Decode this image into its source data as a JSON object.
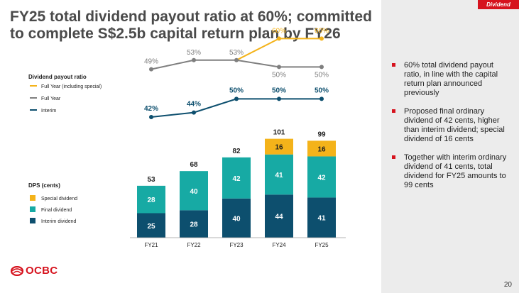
{
  "header": {
    "title_line1": "FY25 total dividend payout ratio at 60%; committed",
    "title_line2": "to complete S$2.5b capital return plan by FY26",
    "tag": "Dividend"
  },
  "bullets": [
    "60% total dividend payout ratio, in line with the capital return plan announced previously",
    "Proposed final ordinary dividend of 42 cents, higher than interim dividend; special dividend of 16 cents",
    "Together with interim ordinary dividend of 41 cents, total dividend for FY25 amounts to 99 cents"
  ],
  "footer": {
    "logo_text": "OCBC",
    "page_number": "20"
  },
  "colors": {
    "special": "#f4b31a",
    "final": "#17aaa4",
    "interim": "#0d4f6e",
    "full_year": "#7f7f7f",
    "full_year_special": "#f4b31a",
    "interim_line": "#0d4f6e",
    "brand_red": "#d6131e"
  },
  "chart_data": [
    {
      "type": "line",
      "title": "Dividend payout ratio",
      "categories": [
        "FY21",
        "FY22",
        "FY23",
        "FY24",
        "FY25"
      ],
      "unit": "%",
      "series": [
        {
          "name": "Full Year (including special)",
          "values": [
            null,
            null,
            53,
            60,
            60
          ],
          "labels": [
            null,
            null,
            null,
            "60%",
            "60%"
          ],
          "color": "#f4b31a"
        },
        {
          "name": "Full Year",
          "values": [
            49,
            53,
            53,
            50,
            50
          ],
          "labels": [
            "49%",
            "53%",
            "53%",
            "50%",
            "50%"
          ],
          "color": "#7f7f7f"
        },
        {
          "name": "Interim",
          "values": [
            42,
            44,
            50,
            50,
            50
          ],
          "labels": [
            "42%",
            "44%",
            "50%",
            "50%",
            "50%"
          ],
          "color": "#0d4f6e"
        }
      ],
      "legend": "left"
    },
    {
      "type": "bar",
      "stacked": true,
      "title": "DPS (cents)",
      "categories": [
        "FY21",
        "FY22",
        "FY23",
        "FY24",
        "FY25"
      ],
      "series": [
        {
          "name": "Interim dividend",
          "values": [
            25,
            28,
            40,
            44,
            41
          ],
          "color": "#0d4f6e"
        },
        {
          "name": "Final dividend",
          "values": [
            28,
            40,
            42,
            41,
            42
          ],
          "color": "#17aaa4"
        },
        {
          "name": "Special dividend",
          "values": [
            0,
            0,
            0,
            16,
            16
          ],
          "color": "#f4b31a"
        }
      ],
      "totals": [
        53,
        68,
        82,
        101,
        99
      ],
      "legend": "left"
    }
  ]
}
